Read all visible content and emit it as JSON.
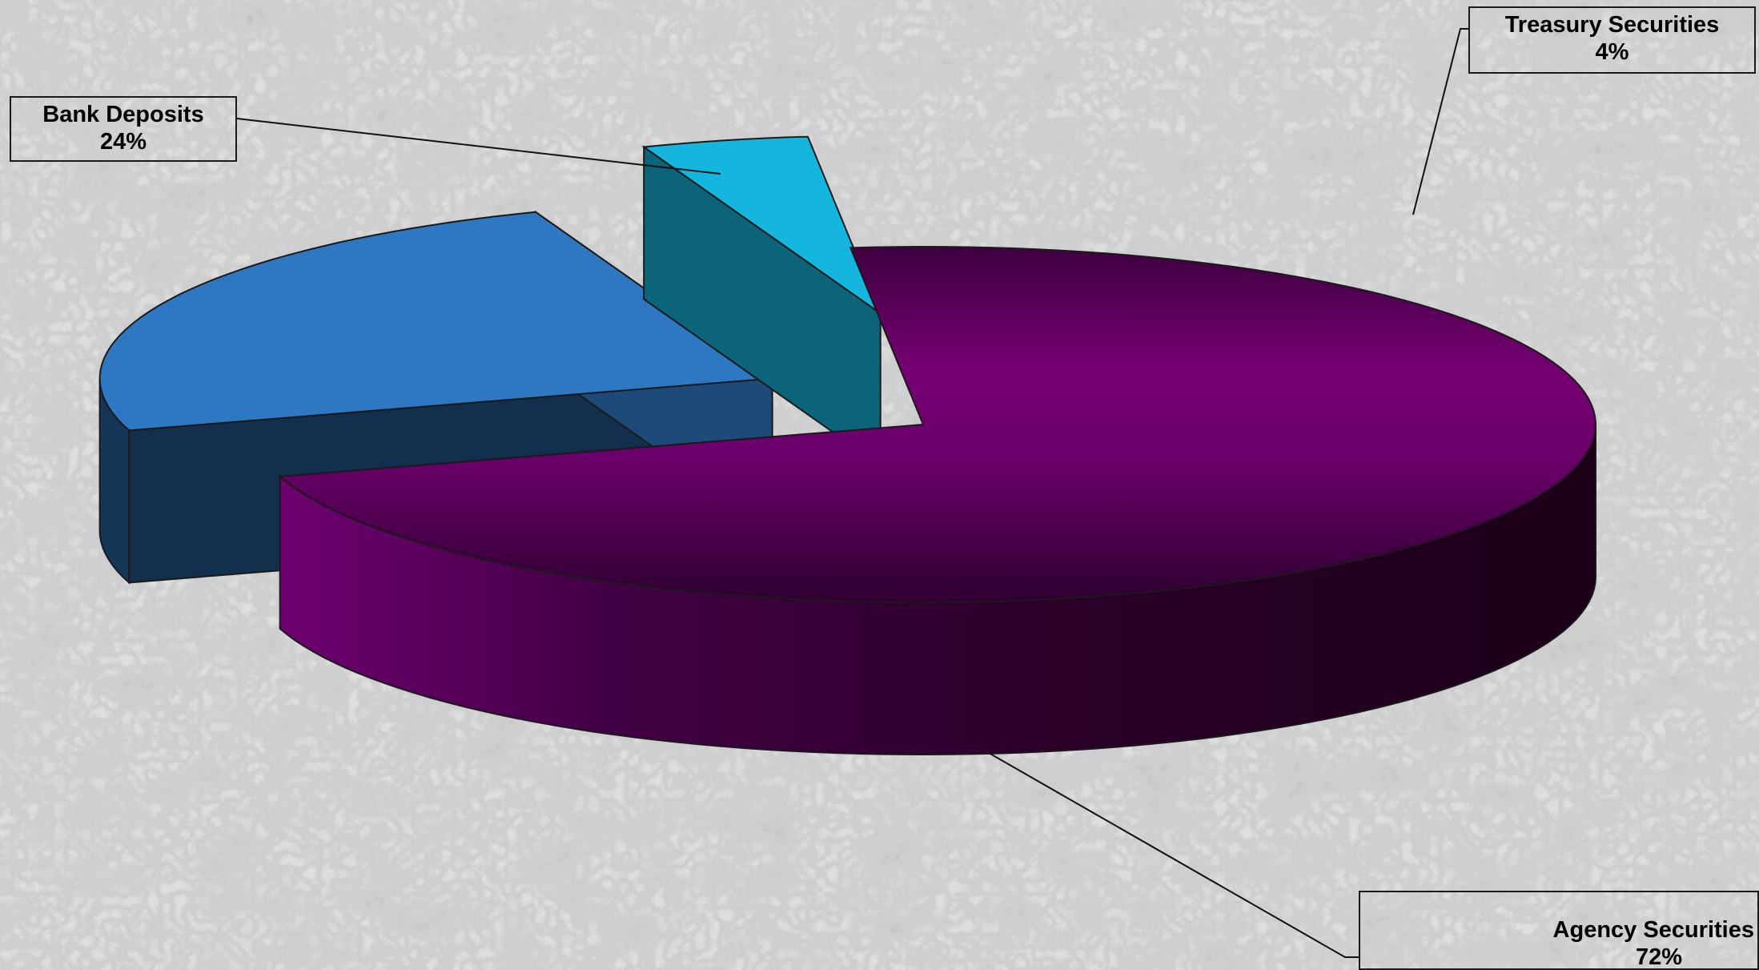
{
  "chart_data": {
    "type": "pie",
    "style": "3d-exploded",
    "legend": "none",
    "slices": [
      {
        "label": "Bank Deposits",
        "percent_label": "24%",
        "value": 24,
        "color": "#2e77c2"
      },
      {
        "label": "Treasury Securities",
        "percent_label": "4%",
        "value": 4,
        "color": "#14b6dd"
      },
      {
        "label": "Agency Securities",
        "percent_label": "72%",
        "value": 72,
        "color": "#760073"
      }
    ]
  },
  "colors": {
    "background": "#d9d9d9",
    "marble_vein": "#8a8a8a",
    "outline": "#1a1a1a"
  }
}
